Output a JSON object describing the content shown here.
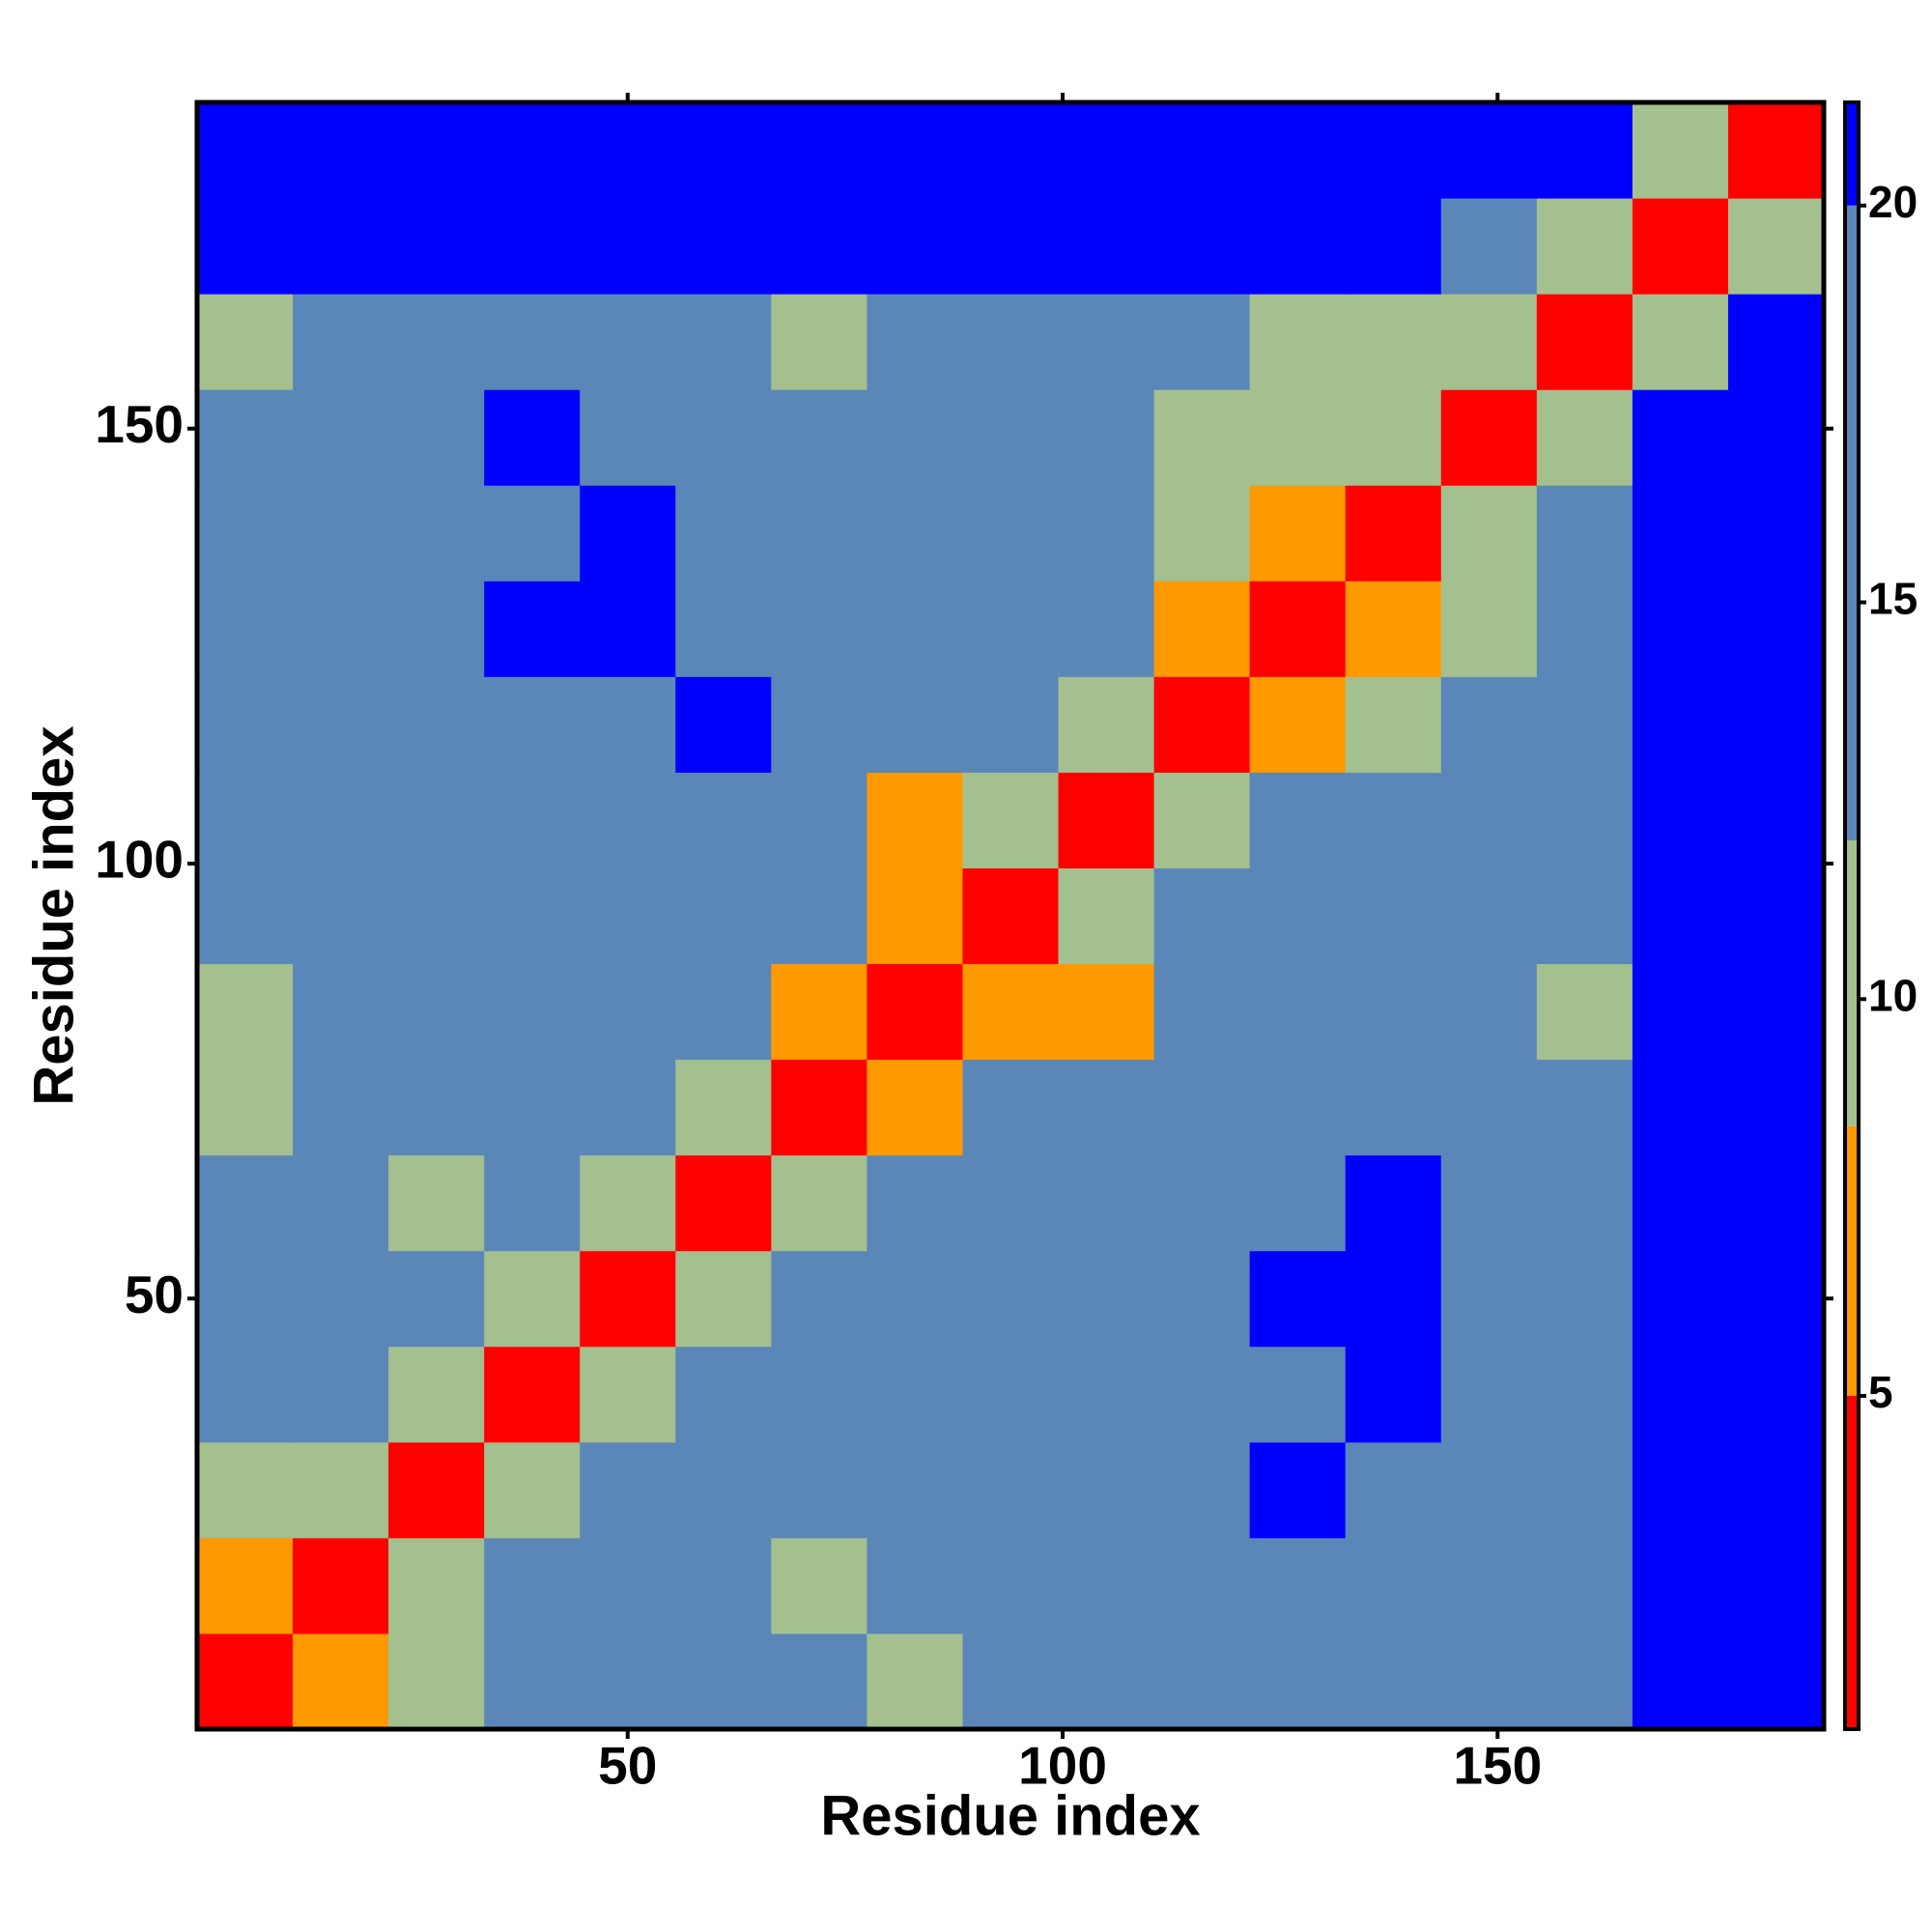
{
  "chart_data": {
    "type": "heatmap",
    "x_label": "Residue index",
    "y_label": "Residue index",
    "xbins": [
      0.5,
      11.5,
      22.5,
      33.5,
      44.5,
      55.5,
      66.5,
      77.5,
      88.5,
      99.5,
      110.5,
      121.5,
      132.5,
      143.5,
      154.5,
      165.5,
      176.5,
      187.5
    ],
    "ybins": [
      0.5,
      11.5,
      22.5,
      33.5,
      44.5,
      55.5,
      66.5,
      77.5,
      88.5,
      99.5,
      110.5,
      121.5,
      132.5,
      143.5,
      154.5,
      165.5,
      176.5,
      187.5
    ],
    "values": [
      [
        3,
        7,
        11,
        15,
        16,
        18,
        14,
        11,
        15,
        15,
        16,
        19,
        20,
        16,
        13,
        21,
        21
      ],
      [
        7,
        3,
        11,
        14,
        18,
        16,
        9,
        13,
        15,
        16,
        18,
        20,
        19,
        17,
        14,
        21,
        21
      ],
      [
        11,
        11,
        3,
        9,
        13,
        16,
        15,
        14,
        17,
        18,
        20,
        21,
        19,
        18,
        16,
        21,
        21
      ],
      [
        15,
        14,
        9,
        3,
        9,
        15,
        16,
        19,
        18,
        17,
        19,
        20,
        21,
        19,
        17,
        21,
        21
      ],
      [
        16,
        18,
        13,
        9,
        3,
        11,
        16,
        18,
        20,
        17,
        20,
        21,
        21,
        19,
        17,
        21,
        21
      ],
      [
        16,
        15,
        12,
        14,
        11,
        3,
        11,
        13,
        15,
        17,
        19,
        20,
        21,
        20,
        17,
        21,
        21
      ],
      [
        9,
        14,
        15,
        15,
        15,
        11,
        3,
        7,
        16,
        16,
        15,
        18,
        17,
        15,
        16,
        21,
        21
      ],
      [
        11,
        13,
        15,
        16,
        17,
        13,
        7,
        3,
        8,
        7,
        15,
        15,
        14,
        15,
        12,
        21,
        21
      ],
      [
        15,
        16,
        17,
        18,
        17,
        15,
        16,
        8,
        3,
        10,
        16,
        18,
        20,
        18,
        16,
        21,
        21
      ],
      [
        15,
        16,
        18,
        17,
        18,
        16,
        15,
        7,
        10,
        3,
        11,
        13,
        15,
        15,
        14,
        21,
        21
      ],
      [
        16,
        17,
        19,
        18,
        18,
        21,
        17,
        16,
        16,
        11,
        3,
        7,
        11,
        13,
        14,
        21,
        21
      ],
      [
        16,
        17,
        20,
        21,
        21,
        20,
        16,
        18,
        15,
        13,
        7,
        3,
        7,
        11,
        13,
        21,
        21
      ],
      [
        14,
        16,
        18,
        20,
        21,
        19,
        15,
        14,
        15,
        15,
        11,
        7,
        3,
        11,
        13,
        21,
        21
      ],
      [
        13,
        17,
        18,
        21,
        20,
        20,
        16,
        19,
        17,
        14,
        12,
        10,
        11,
        3,
        10,
        21,
        21
      ],
      [
        11,
        15,
        17,
        19,
        19,
        14,
        12,
        17,
        17,
        13,
        13,
        12,
        12,
        10,
        3,
        10,
        21
      ],
      [
        21,
        21,
        21,
        21,
        21,
        21,
        21,
        21,
        21,
        21,
        21,
        21,
        21,
        14,
        10,
        3,
        10
      ],
      [
        21,
        21,
        21,
        21,
        21,
        21,
        21,
        21,
        21,
        21,
        21,
        21,
        21,
        21,
        21,
        10,
        3
      ]
    ],
    "xlim": [
      0.5,
      187.5
    ],
    "ylim": [
      0.5,
      187.5
    ],
    "xticks": [
      50,
      100,
      150
    ],
    "yticks": [
      50,
      100,
      150
    ],
    "clim": [
      0.8,
      21.3
    ],
    "cticks": [
      5,
      10,
      15,
      20
    ],
    "colorscale": [
      {
        "max": 5,
        "color": "#ff0000"
      },
      {
        "max": 8.4,
        "color": "#ff9900"
      },
      {
        "max": 12,
        "color": "#a4c08f"
      },
      {
        "max": 20,
        "color": "#5b87b8"
      },
      {
        "max": 21.3,
        "color": "#0000ff"
      }
    ]
  }
}
